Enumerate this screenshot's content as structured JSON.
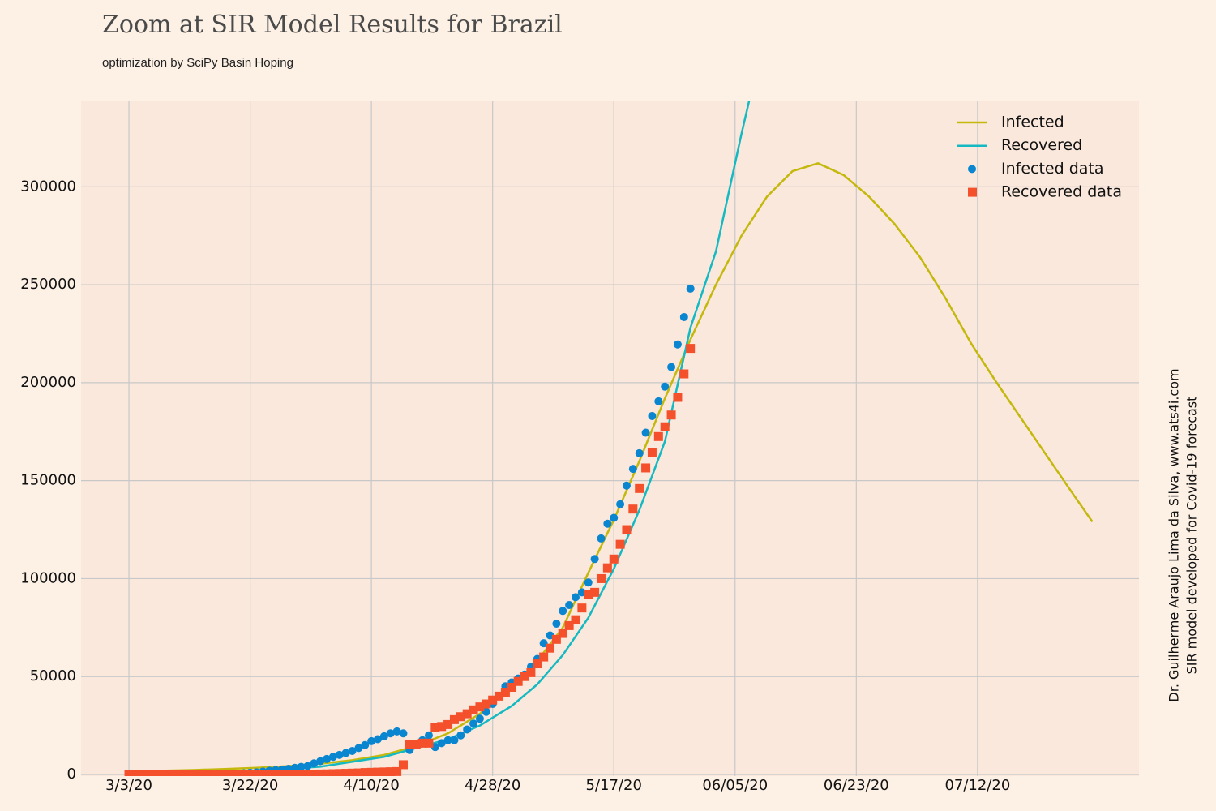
{
  "chart_data": {
    "type": "line",
    "title": "Zoom at SIR Model Results for Brazil",
    "subtitle": "optimization by SciPy Basin Hoping",
    "annotations": [
      "Dr. Guilherme Araujo Lima da Silva, www.ats4i.com",
      "SIR model developed for Covid-19 forecast"
    ],
    "xlim": [
      -7.5,
      158.3
    ],
    "ylim": [
      0,
      343600
    ],
    "xticks": [
      {
        "value": 0,
        "label": "3/3/20"
      },
      {
        "value": 19,
        "label": "3/22/20"
      },
      {
        "value": 38,
        "label": "4/10/20"
      },
      {
        "value": 57,
        "label": "4/28/20"
      },
      {
        "value": 76,
        "label": "5/17/20"
      },
      {
        "value": 95,
        "label": "06/05/20"
      },
      {
        "value": 114,
        "label": "06/23/20"
      },
      {
        "value": 133,
        "label": "07/12/20"
      }
    ],
    "yticks": [
      0,
      50000,
      100000,
      150000,
      200000,
      250000,
      300000
    ],
    "grid": true,
    "legend": "upper right",
    "series": [
      {
        "name": "Infected",
        "type": "line",
        "color": "#c4b80c",
        "x": [
          0,
          5,
          10,
          15,
          20,
          25,
          30,
          35,
          40,
          45,
          50,
          55,
          60,
          64,
          68,
          72,
          76,
          80,
          84,
          88,
          92,
          96,
          100,
          104,
          108,
          112,
          116,
          120,
          124,
          128,
          132,
          136,
          140,
          144,
          148,
          151
        ],
        "values": [
          1500,
          1900,
          2300,
          2800,
          3400,
          4300,
          5500,
          7300,
          10000,
          14500,
          21000,
          31000,
          45000,
          58000,
          75000,
          103000,
          130000,
          160000,
          192000,
          222000,
          250000,
          275000,
          295000,
          308000,
          312000,
          306000,
          295000,
          281000,
          264000,
          243000,
          220000,
          200000,
          181000,
          162000,
          143000,
          129000
        ]
      },
      {
        "name": "Recovered",
        "type": "line",
        "color": "#14b9c2",
        "x": [
          0,
          10,
          20,
          30,
          40,
          45,
          50,
          55,
          60,
          64,
          68,
          72,
          76,
          80,
          84,
          88,
          92,
          96,
          98
        ],
        "values": [
          500,
          1000,
          2000,
          4000,
          9000,
          13500,
          18000,
          25000,
          35000,
          46000,
          61000,
          80000,
          105000,
          135000,
          170000,
          228000,
          267000,
          327000,
          355000
        ]
      },
      {
        "name": "Infected data",
        "type": "scatter",
        "marker": "circle",
        "color": "#0a86d0",
        "x": [
          0,
          1,
          2,
          3,
          4,
          5,
          6,
          7,
          8,
          9,
          10,
          11,
          12,
          13,
          14,
          15,
          16,
          17,
          18,
          19,
          20,
          21,
          22,
          23,
          24,
          25,
          26,
          27,
          28,
          29,
          30,
          31,
          32,
          33,
          34,
          35,
          36,
          37,
          38,
          39,
          40,
          41,
          42,
          43,
          44,
          45,
          46,
          47,
          48,
          49,
          50,
          51,
          52,
          53,
          54,
          55,
          56,
          57,
          58,
          59,
          60,
          61,
          62,
          63,
          64,
          65,
          66,
          67,
          68,
          69,
          70,
          71,
          72,
          73,
          74,
          75,
          76,
          77,
          78,
          79,
          80,
          81,
          82,
          83,
          84,
          85,
          86,
          87,
          88
        ],
        "values": [
          0,
          0,
          0,
          0,
          0,
          0,
          0,
          0,
          0,
          0,
          0,
          0,
          0,
          0,
          100,
          200,
          300,
          400,
          600,
          900,
          1100,
          1500,
          1900,
          2200,
          2500,
          2900,
          3400,
          3900,
          4300,
          5700,
          6800,
          7900,
          9000,
          10000,
          11000,
          12000,
          13500,
          15000,
          17000,
          18000,
          19500,
          21000,
          22000,
          21000,
          12500,
          15000,
          17500,
          20000,
          14000,
          16000,
          17500,
          17500,
          20000,
          23000,
          26000,
          28500,
          32000,
          36000,
          40000,
          45000,
          47000,
          49000,
          51000,
          55000,
          59000,
          67000,
          71000,
          77000,
          83500,
          86500,
          90500,
          93000,
          98000,
          110000,
          120500,
          128000,
          131000,
          138000,
          147500,
          156000,
          164000,
          174500,
          183000,
          190500,
          198000,
          208000,
          219500,
          233500,
          248000
        ]
      },
      {
        "name": "Recovered data",
        "type": "scatter",
        "marker": "square",
        "color": "#f5502c",
        "x": [
          0,
          1,
          2,
          3,
          4,
          5,
          6,
          7,
          8,
          9,
          10,
          11,
          12,
          13,
          14,
          15,
          16,
          17,
          18,
          19,
          20,
          21,
          22,
          23,
          24,
          25,
          26,
          27,
          28,
          29,
          30,
          31,
          32,
          33,
          34,
          35,
          36,
          37,
          38,
          39,
          40,
          41,
          42,
          43,
          44,
          45,
          46,
          47,
          48,
          49,
          50,
          51,
          52,
          53,
          54,
          55,
          56,
          57,
          58,
          59,
          60,
          61,
          62,
          63,
          64,
          65,
          66,
          67,
          68,
          69,
          70,
          71,
          72,
          73,
          74,
          75,
          76,
          77,
          78,
          79,
          80,
          81,
          82,
          83,
          84,
          85,
          86,
          87,
          88
        ],
        "values": [
          0,
          0,
          0,
          0,
          0,
          0,
          0,
          0,
          0,
          0,
          0,
          0,
          0,
          0,
          0,
          0,
          0,
          0,
          0,
          0,
          0,
          0,
          0,
          0,
          0,
          100,
          120,
          130,
          170,
          200,
          250,
          300,
          400,
          500,
          600,
          700,
          800,
          1000,
          1100,
          1200,
          1300,
          1400,
          1500,
          5000,
          15500,
          15500,
          16000,
          16000,
          24000,
          24500,
          25500,
          28000,
          29500,
          31000,
          33000,
          34500,
          36000,
          38000,
          40000,
          42000,
          44500,
          47500,
          50000,
          52000,
          56500,
          60000,
          64500,
          69000,
          72000,
          76000,
          79000,
          85000,
          92000,
          93000,
          100000,
          105500,
          110000,
          117500,
          125000,
          135500,
          146000,
          156500,
          164500,
          172500,
          177500,
          183500,
          192500,
          204500,
          217500
        ]
      }
    ]
  }
}
